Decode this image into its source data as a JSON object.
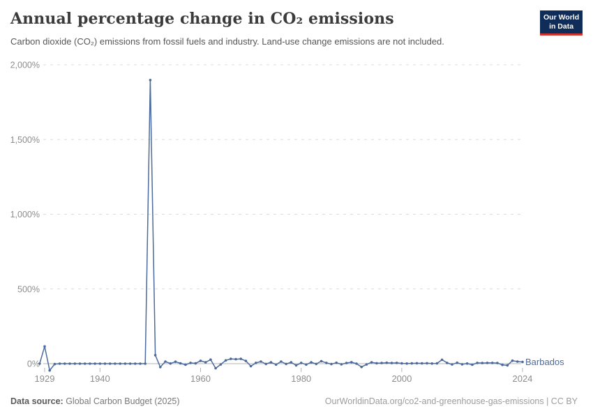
{
  "header": {
    "title": "Annual percentage change in CO₂ emissions",
    "subtitle": "Carbon dioxide (CO₂) emissions from fossil fuels and industry. Land-use change emissions are not included.",
    "logo_line1": "Our World",
    "logo_line2": "in Data"
  },
  "chart_data": {
    "type": "line",
    "title": "Annual percentage change in CO₂ emissions",
    "entity_label": "Barbados",
    "xlabel": "",
    "ylabel": "",
    "xlim": [
      1928,
      2025
    ],
    "ylim": [
      -60,
      2000
    ],
    "grid": "horizontal-dashed",
    "legend_position": "line-end-label",
    "x_tick_years": [
      1929,
      1940,
      1960,
      1980,
      2000,
      2024
    ],
    "x_tick_labels": [
      "1929",
      "1940",
      "1960",
      "1980",
      "2000",
      "2024"
    ],
    "y_tick_values": [
      0,
      500,
      1000,
      1500,
      2000
    ],
    "y_tick_labels": [
      "0%",
      "500%",
      "1,000%",
      "1,500%",
      "2,000%"
    ],
    "series": [
      {
        "name": "Barbados",
        "color": "#4c6a9c",
        "years": [
          1928,
          1929,
          1930,
          1931,
          1932,
          1933,
          1934,
          1935,
          1936,
          1937,
          1938,
          1939,
          1940,
          1941,
          1942,
          1943,
          1944,
          1945,
          1946,
          1947,
          1948,
          1949,
          1950,
          1951,
          1952,
          1953,
          1954,
          1955,
          1956,
          1957,
          1958,
          1959,
          1960,
          1961,
          1962,
          1963,
          1964,
          1965,
          1966,
          1967,
          1968,
          1969,
          1970,
          1971,
          1972,
          1973,
          1974,
          1975,
          1976,
          1977,
          1978,
          1979,
          1980,
          1981,
          1982,
          1983,
          1984,
          1985,
          1986,
          1987,
          1988,
          1989,
          1990,
          1991,
          1992,
          1993,
          1994,
          1995,
          1996,
          1997,
          1998,
          1999,
          2000,
          2001,
          2002,
          2003,
          2004,
          2005,
          2006,
          2007,
          2008,
          2009,
          2010,
          2011,
          2012,
          2013,
          2014,
          2015,
          2016,
          2017,
          2018,
          2019,
          2020,
          2021,
          2022,
          2023,
          2024
        ],
        "values": [
          0,
          115,
          -45,
          -3,
          0,
          0,
          0,
          0,
          0,
          0,
          0,
          0,
          0,
          0,
          0,
          0,
          0,
          0,
          0,
          0,
          0,
          0,
          1898,
          57,
          -23,
          14,
          1,
          13,
          2,
          -7,
          5,
          2,
          19,
          9,
          27,
          -31,
          -5,
          22,
          32,
          30,
          32,
          18,
          -17,
          5,
          14,
          -2,
          9,
          -6,
          14,
          -2,
          9,
          -11,
          5,
          -6,
          9,
          -2,
          17,
          5,
          -3,
          6,
          -4,
          4,
          10,
          0,
          -22,
          -5,
          9,
          3,
          4,
          6,
          4,
          5,
          2,
          1,
          2,
          3,
          2,
          3,
          1,
          2,
          26,
          5,
          -5,
          6,
          -4,
          1,
          -7,
          5,
          4,
          5,
          5,
          4,
          -8,
          -11,
          20,
          14,
          11
        ]
      }
    ]
  },
  "colors": {
    "line": "#4c6a9c",
    "grid": "#dcdcdc",
    "zero_line": "#b3b3b3",
    "tick": "#b3b3b3",
    "axis_text": "#8c8c8c",
    "logo_bg": "#102d59",
    "logo_red": "#cf352e"
  },
  "footer": {
    "source_label": "Data source:",
    "source_value": " Global Carbon Budget (2025)",
    "attribution": "OurWorldinData.org/co2-and-greenhouse-gas-emissions | CC BY"
  }
}
